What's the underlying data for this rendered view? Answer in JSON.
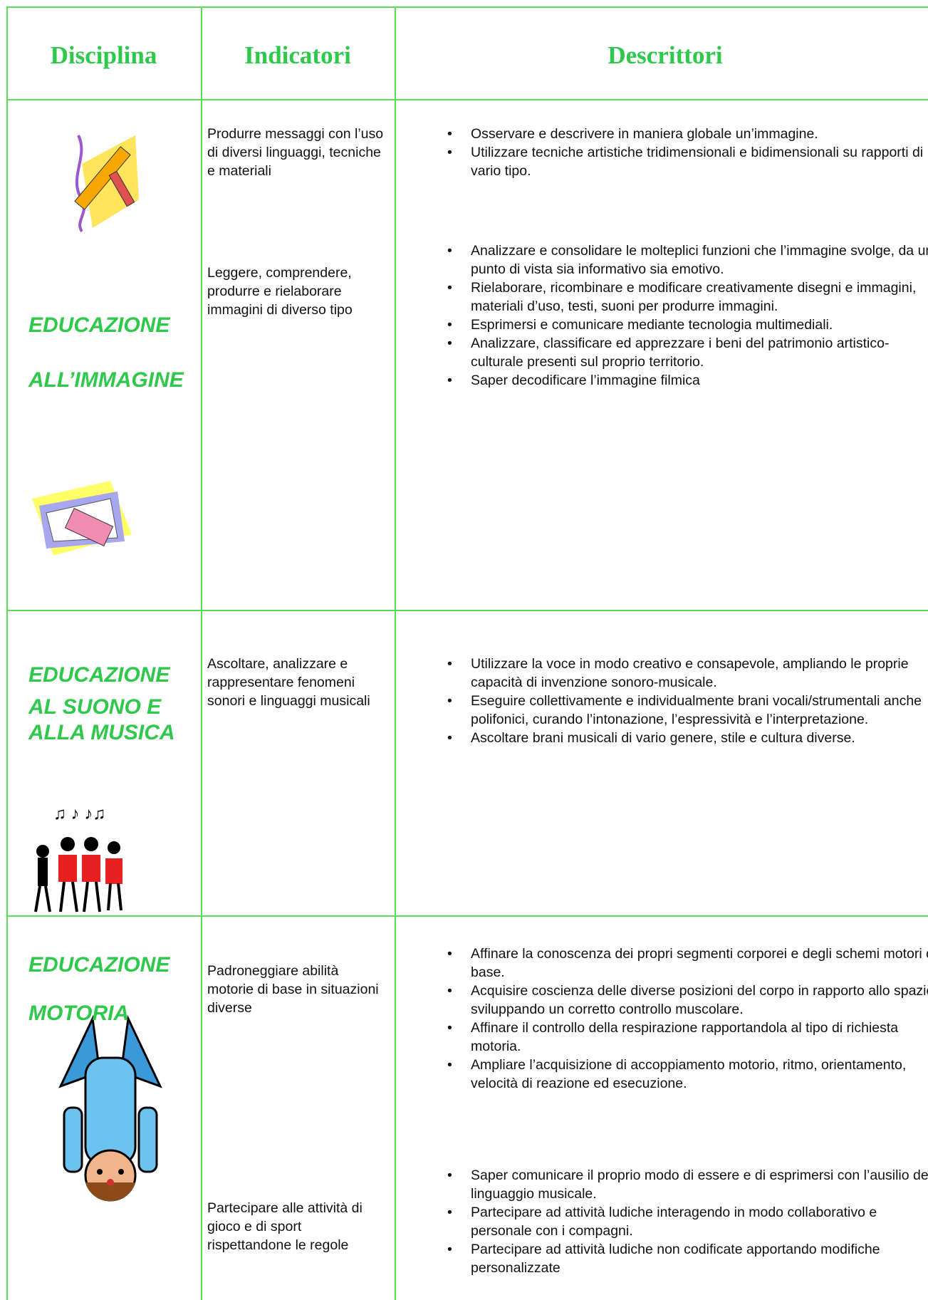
{
  "header": {
    "columns": [
      "Disciplina",
      "Indicatori",
      "Descrittori"
    ]
  },
  "rows": [
    {
      "discipline": [
        "EDUCAZIONE",
        "ALL’IMMAGINE"
      ],
      "indicators": [
        "Produrre messaggi con l’uso di diversi linguaggi, tecniche e materiali",
        "Leggere, comprendere, produrre e rielaborare immagini di diverso tipo"
      ],
      "descriptors": [
        [
          "Osservare e descrivere in maniera globale un’immagine.",
          "Utilizzare tecniche artistiche tridimensionali e bidimensionali su rapporti di vario tipo."
        ],
        [
          "Analizzare e consolidare le molteplici funzioni che l’immagine svolge, da un punto di vista sia informativo sia emotivo.",
          "Rielaborare, ricombinare e modificare creativamente disegni e immagini, materiali d’uso, testi, suoni per produrre immagini.",
          "Esprimersi e comunicare mediante tecnologia multimediali.",
          "Analizzare, classificare ed apprezzare i beni del patrimonio artistico-culturale presenti sul proprio territorio.",
          "Saper decodificare l’immagine filmica"
        ]
      ]
    },
    {
      "discipline": [
        "EDUCAZIONE",
        "AL SUONO E",
        "ALLA MUSICA"
      ],
      "indicators": [
        "Ascoltare,  analizzare e rappresentare fenomeni sonori e linguaggi musicali"
      ],
      "descriptors": [
        [
          "Utilizzare la voce in modo creativo e consapevole, ampliando le proprie capacità di invenzione sonoro-musicale.",
          "Eseguire collettivamente e individualmente brani vocali/strumentali anche polifonici, curando l’intonazione, l’espressività e l’interpretazione.",
          "Ascoltare brani musicali di vario genere, stile e cultura diverse."
        ]
      ]
    },
    {
      "discipline": [
        "EDUCAZIONE",
        "MOTORIA"
      ],
      "indicators": [
        "Padroneggiare abilità motorie di base in situazioni diverse",
        "Partecipare alle attività di gioco e di sport rispettandone le regole"
      ],
      "descriptors": [
        [
          "Affinare la conoscenza dei propri segmenti corporei e degli schemi motori di base.",
          "Acquisire coscienza delle diverse posizioni del corpo in rapporto allo spazio, sviluppando un corretto controllo muscolare.",
          "Affinare il controllo della respirazione rapportandola al tipo di richiesta motoria.",
          "Ampliare l’acquisizione di accoppiamento motorio, ritmo, orientamento, velocità di reazione ed esecuzione."
        ],
        [
          "Saper comunicare il proprio modo di essere e di esprimersi con l’ausilio del linguaggio musicale.",
          "Partecipare ad attività ludiche interagendo in modo collaborativo e personale con i compagni.",
          "Partecipare ad attività ludiche non codificate apportando modifiche personalizzate"
        ]
      ]
    }
  ]
}
